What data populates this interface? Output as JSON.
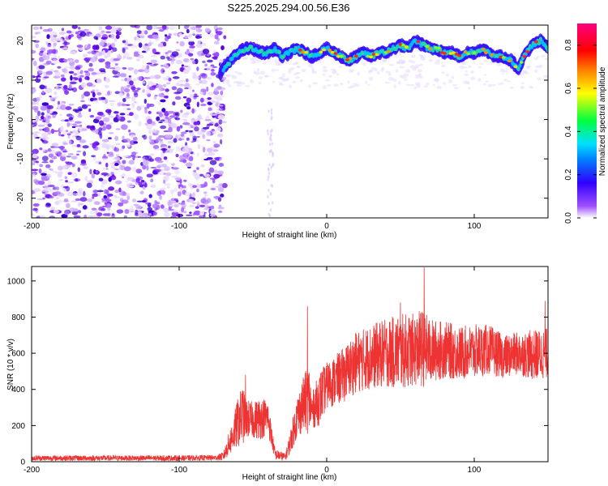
{
  "title": "S225.2025.294.00.56.E36",
  "chart_data": [
    {
      "type": "heatmap",
      "name": "spectrogram",
      "xlabel": "Height of straight line (km)",
      "ylabel": "Frequency (Hz)",
      "xlim": [
        -200,
        150
      ],
      "ylim": [
        -25,
        24
      ],
      "xticks": [
        -200,
        -100,
        0,
        100
      ],
      "yticks": [
        -20,
        -10,
        0,
        10,
        20
      ],
      "noise_region_x": [
        -200,
        -75
      ],
      "signal_track": {
        "x": [
          -72,
          -65,
          -60,
          -55,
          -50,
          -45,
          -40,
          -35,
          -30,
          -25,
          -20,
          -15,
          -10,
          -5,
          0,
          5,
          10,
          15,
          20,
          25,
          30,
          35,
          40,
          45,
          50,
          55,
          60,
          65,
          70,
          75,
          80,
          85,
          90,
          95,
          100,
          105,
          110,
          115,
          120,
          125,
          130,
          135,
          140,
          145,
          150
        ],
        "freq_hz": [
          12,
          15,
          17,
          18,
          18,
          17,
          17,
          18,
          16,
          17,
          18,
          17,
          16,
          17,
          18,
          17,
          16,
          15,
          16,
          17,
          16,
          17,
          17,
          18,
          19,
          18,
          20,
          19,
          18,
          18,
          17,
          17,
          16,
          17,
          17,
          18,
          17,
          16,
          16,
          15,
          13,
          17,
          19,
          20,
          18
        ]
      },
      "colorbar": {
        "label": "Normalized spectral amplitude",
        "range": [
          0.0,
          0.9
        ],
        "ticks": [
          "0.0",
          "0.2",
          "0.4",
          "0.6",
          "0.8"
        ]
      }
    },
    {
      "type": "line",
      "name": "snr",
      "xlabel": "Height of straight line (km)",
      "ylabel": "SNR (10 * v/v)",
      "xlim": [
        -200,
        150
      ],
      "ylim": [
        0,
        1080
      ],
      "xticks": [
        -200,
        -100,
        0,
        100
      ],
      "yticks": [
        0,
        200,
        400,
        600,
        800,
        1000
      ],
      "color": "#ee3333",
      "envelope": {
        "x": [
          -200,
          -150,
          -100,
          -75,
          -70,
          -65,
          -60,
          -57,
          -55,
          -50,
          -45,
          -40,
          -35,
          -30,
          -28,
          -25,
          -20,
          -15,
          -12,
          -10,
          -5,
          0,
          10,
          20,
          30,
          40,
          50,
          60,
          65,
          70,
          80,
          90,
          100,
          110,
          120,
          130,
          140,
          150
        ],
        "mean": [
          20,
          20,
          20,
          22,
          30,
          120,
          220,
          260,
          240,
          230,
          240,
          250,
          40,
          30,
          25,
          100,
          250,
          330,
          350,
          280,
          350,
          420,
          470,
          550,
          580,
          600,
          610,
          620,
          630,
          610,
          620,
          600,
          610,
          620,
          580,
          600,
          590,
          600
        ],
        "spread": [
          15,
          15,
          15,
          15,
          25,
          80,
          140,
          170,
          110,
          100,
          120,
          100,
          30,
          25,
          20,
          60,
          120,
          160,
          200,
          100,
          150,
          130,
          150,
          170,
          180,
          190,
          210,
          200,
          220,
          180,
          160,
          150,
          150,
          140,
          120,
          120,
          140,
          140
        ]
      },
      "peaks": [
        {
          "x": -55,
          "y": 480
        },
        {
          "x": -13,
          "y": 860
        },
        {
          "x": 50,
          "y": 880
        },
        {
          "x": 66,
          "y": 1075
        },
        {
          "x": 148,
          "y": 890
        }
      ]
    }
  ]
}
